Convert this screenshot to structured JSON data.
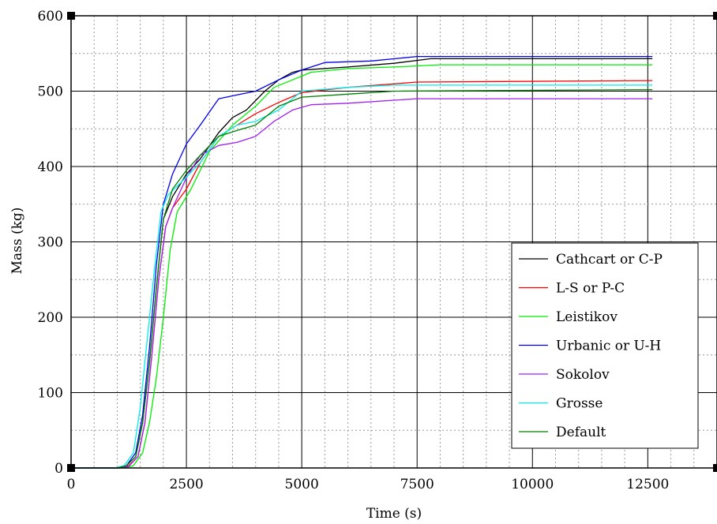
{
  "chart_data": {
    "type": "line",
    "title": "",
    "xlabel": "Time (s)",
    "ylabel": "Mass (kg)",
    "xlim": [
      0,
      14000
    ],
    "ylim": [
      0,
      600
    ],
    "x_ticks": [
      "0",
      "2500",
      "5000",
      "7500",
      "10000",
      "12500"
    ],
    "y_ticks": [
      "0",
      "100",
      "200",
      "300",
      "400",
      "500",
      "600"
    ],
    "grid": true,
    "legend_position": "right-middle",
    "series": [
      {
        "name": "Cathcart or C-P",
        "color": "#000000",
        "points": [
          [
            0,
            0
          ],
          [
            1000,
            0
          ],
          [
            1200,
            3
          ],
          [
            1400,
            15
          ],
          [
            1550,
            60
          ],
          [
            1700,
            140
          ],
          [
            1850,
            240
          ],
          [
            2000,
            330
          ],
          [
            2200,
            360
          ],
          [
            2500,
            390
          ],
          [
            2800,
            410
          ],
          [
            3200,
            445
          ],
          [
            3500,
            465
          ],
          [
            3800,
            475
          ],
          [
            4200,
            500
          ],
          [
            4500,
            515
          ],
          [
            4800,
            525
          ],
          [
            5000,
            528
          ],
          [
            6000,
            532
          ],
          [
            7000,
            537
          ],
          [
            7800,
            543
          ],
          [
            12600,
            543
          ]
        ]
      },
      {
        "name": "L-S or P-C",
        "color": "#ff0000",
        "points": [
          [
            0,
            0
          ],
          [
            1050,
            0
          ],
          [
            1250,
            3
          ],
          [
            1450,
            15
          ],
          [
            1600,
            60
          ],
          [
            1750,
            150
          ],
          [
            1900,
            250
          ],
          [
            2050,
            320
          ],
          [
            2200,
            345
          ],
          [
            2500,
            370
          ],
          [
            2800,
            405
          ],
          [
            3200,
            440
          ],
          [
            3600,
            455
          ],
          [
            4000,
            470
          ],
          [
            4500,
            485
          ],
          [
            5000,
            498
          ],
          [
            6000,
            505
          ],
          [
            7500,
            512
          ],
          [
            12600,
            514
          ]
        ]
      },
      {
        "name": "Leistikov",
        "color": "#00ee00",
        "points": [
          [
            0,
            0
          ],
          [
            1150,
            0
          ],
          [
            1350,
            3
          ],
          [
            1550,
            20
          ],
          [
            1700,
            60
          ],
          [
            1850,
            120
          ],
          [
            2000,
            200
          ],
          [
            2150,
            290
          ],
          [
            2300,
            340
          ],
          [
            2600,
            370
          ],
          [
            3000,
            420
          ],
          [
            3500,
            455
          ],
          [
            4000,
            480
          ],
          [
            4400,
            505
          ],
          [
            4800,
            515
          ],
          [
            5200,
            525
          ],
          [
            6000,
            530
          ],
          [
            7000,
            532
          ],
          [
            8000,
            535
          ],
          [
            12600,
            535
          ]
        ]
      },
      {
        "name": "Urbanic or U-H",
        "color": "#0000ee",
        "points": [
          [
            0,
            0
          ],
          [
            1000,
            0
          ],
          [
            1200,
            3
          ],
          [
            1400,
            20
          ],
          [
            1550,
            70
          ],
          [
            1700,
            160
          ],
          [
            1850,
            270
          ],
          [
            2000,
            350
          ],
          [
            2200,
            390
          ],
          [
            2500,
            430
          ],
          [
            2800,
            455
          ],
          [
            3200,
            490
          ],
          [
            3600,
            495
          ],
          [
            4000,
            500
          ],
          [
            4500,
            515
          ],
          [
            5000,
            528
          ],
          [
            5500,
            538
          ],
          [
            6500,
            540
          ],
          [
            7500,
            546
          ],
          [
            12600,
            546
          ]
        ]
      },
      {
        "name": "Sokolov",
        "color": "#a020f0",
        "points": [
          [
            0,
            0
          ],
          [
            1050,
            0
          ],
          [
            1250,
            2
          ],
          [
            1450,
            15
          ],
          [
            1600,
            60
          ],
          [
            1750,
            150
          ],
          [
            1900,
            250
          ],
          [
            2050,
            320
          ],
          [
            2200,
            345
          ],
          [
            2500,
            385
          ],
          [
            2800,
            415
          ],
          [
            3200,
            428
          ],
          [
            3600,
            432
          ],
          [
            4000,
            440
          ],
          [
            4400,
            460
          ],
          [
            4800,
            475
          ],
          [
            5200,
            482
          ],
          [
            6000,
            484
          ],
          [
            7500,
            490
          ],
          [
            12600,
            490
          ]
        ]
      },
      {
        "name": "Grosse",
        "color": "#00eeee",
        "points": [
          [
            0,
            0
          ],
          [
            950,
            0
          ],
          [
            1150,
            3
          ],
          [
            1350,
            20
          ],
          [
            1500,
            80
          ],
          [
            1650,
            170
          ],
          [
            1800,
            260
          ],
          [
            1950,
            340
          ],
          [
            2100,
            362
          ],
          [
            2400,
            380
          ],
          [
            2800,
            405
          ],
          [
            3200,
            440
          ],
          [
            3600,
            455
          ],
          [
            4000,
            460
          ],
          [
            4500,
            475
          ],
          [
            5000,
            500
          ],
          [
            6000,
            505
          ],
          [
            7000,
            508
          ],
          [
            12600,
            508
          ]
        ]
      },
      {
        "name": "Default",
        "color": "#008000",
        "points": [
          [
            0,
            0
          ],
          [
            1000,
            0
          ],
          [
            1200,
            3
          ],
          [
            1400,
            15
          ],
          [
            1550,
            60
          ],
          [
            1700,
            140
          ],
          [
            1850,
            240
          ],
          [
            2000,
            330
          ],
          [
            2200,
            370
          ],
          [
            2500,
            395
          ],
          [
            2800,
            415
          ],
          [
            3200,
            440
          ],
          [
            3600,
            448
          ],
          [
            4000,
            455
          ],
          [
            4500,
            480
          ],
          [
            5000,
            492
          ],
          [
            6000,
            496
          ],
          [
            7000,
            500
          ],
          [
            12600,
            502
          ]
        ]
      }
    ]
  }
}
